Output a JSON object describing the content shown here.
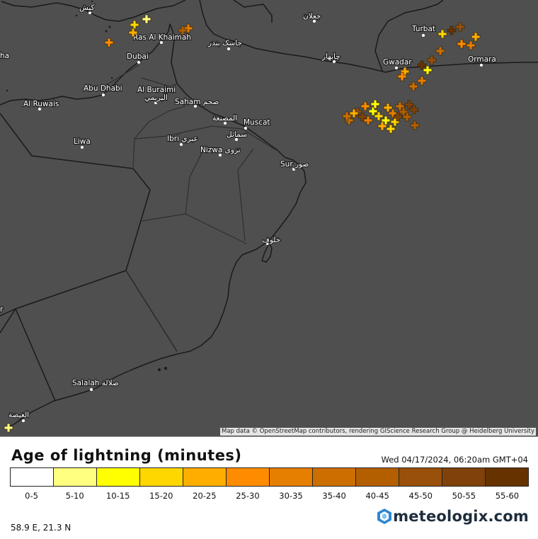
{
  "map": {
    "attribution": "Map data © OpenStreetMap contributors, rendering GIScience Research Group @ Heidelberg University",
    "colors": {
      "land": "#4f4f4f",
      "border": "#1a1a1a",
      "inner_border": "#2f2f2f"
    },
    "cities": [
      {
        "id": "kish",
        "label": "کیش"
      },
      {
        "id": "rak",
        "label": "Ras Al Khaimah"
      },
      {
        "id": "dubai",
        "label": "Dubai"
      },
      {
        "id": "abudhabi",
        "label": "Abu Dhabi"
      },
      {
        "id": "alburaimi",
        "label": "Al Buraimi"
      },
      {
        "id": "alburaimi_ar",
        "label": "البريمي"
      },
      {
        "id": "alruwais",
        "label": "Al Ruwais"
      },
      {
        "id": "saham",
        "label": "Saham صحم"
      },
      {
        "id": "alsuwaiq",
        "label": "المصنعة"
      },
      {
        "id": "muscat",
        "label": "Muscat"
      },
      {
        "id": "samail",
        "label": "سمائل"
      },
      {
        "id": "ibri",
        "label": "Ibri عبري"
      },
      {
        "id": "liwa",
        "label": "Liwa"
      },
      {
        "id": "nizwa",
        "label": "Nizwa نزوى"
      },
      {
        "id": "sur",
        "label": "Sur صور"
      },
      {
        "id": "jalan",
        "label": "جعلان"
      },
      {
        "id": "khalouf",
        "label": "خلوف"
      },
      {
        "id": "bandar_jask",
        "label": "جاسک بندر"
      },
      {
        "id": "chabahar",
        "label": "چابهار"
      },
      {
        "id": "turbat",
        "label": "Turbat"
      },
      {
        "id": "gwadar",
        "label": "Gwadar"
      },
      {
        "id": "ormara",
        "label": "Ormara"
      },
      {
        "id": "salalah",
        "label": "Salalah صلالة"
      },
      {
        "id": "alghaydah",
        "label": "الغيضة"
      },
      {
        "id": "edge_ha",
        "label": "ha"
      },
      {
        "id": "edge_r",
        "label": "r"
      }
    ],
    "lightning_icon": "plus-marker-icon",
    "lightning_strikes_by_age_class": [
      {
        "age_class": "5-10",
        "count": 2
      },
      {
        "age_class": "10-15",
        "count": 4
      },
      {
        "age_class": "15-20",
        "count": 6
      },
      {
        "age_class": "20-25",
        "count": 7
      },
      {
        "age_class": "25-30",
        "count": 5
      },
      {
        "age_class": "30-35",
        "count": 5
      },
      {
        "age_class": "35-40",
        "count": 6
      },
      {
        "age_class": "40-45",
        "count": 5
      },
      {
        "age_class": "45-50",
        "count": 4
      },
      {
        "age_class": "50-55",
        "count": 4
      },
      {
        "age_class": "55-60",
        "count": 2
      }
    ]
  },
  "legend": {
    "title": "Age of lightning (minutes)",
    "timestamp": "Wed 04/17/2024, 06:20am GMT+04",
    "classes": [
      {
        "label": "0-5",
        "color": "#ffffff"
      },
      {
        "label": "5-10",
        "color": "#ffff80"
      },
      {
        "label": "10-15",
        "color": "#ffff00"
      },
      {
        "label": "15-20",
        "color": "#ffd700"
      },
      {
        "label": "20-25",
        "color": "#ffae00"
      },
      {
        "label": "25-30",
        "color": "#ff8c00"
      },
      {
        "label": "30-35",
        "color": "#e67e00"
      },
      {
        "label": "35-40",
        "color": "#cc6e00"
      },
      {
        "label": "40-45",
        "color": "#b35f00"
      },
      {
        "label": "45-50",
        "color": "#99500a"
      },
      {
        "label": "50-55",
        "color": "#80420a"
      },
      {
        "label": "55-60",
        "color": "#663300"
      }
    ]
  },
  "footer": {
    "coordinates": "58.9 E, 21.3 N",
    "brand": "meteologix.com",
    "brand_icon": "meteologix-logo-icon",
    "brand_color": "#1f2d3d",
    "logo_color": "#2e87d1"
  }
}
